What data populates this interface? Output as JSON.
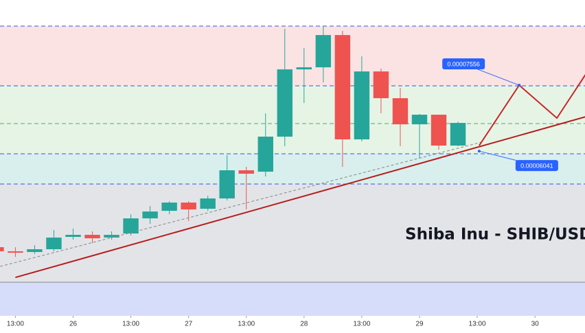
{
  "chart_data": {
    "type": "candlestick",
    "title": "Shiba Inu - SHIB/USD",
    "up_color": "#26a69a",
    "down_color": "#ef5350",
    "xlim": [
      0.2,
      30.6
    ],
    "ylim": [
      2.431e-05,
      9.469e-05
    ],
    "xticks": [
      {
        "value": 1,
        "label": "13:00"
      },
      {
        "value": 4,
        "label": "26"
      },
      {
        "value": 7,
        "label": "13:00"
      },
      {
        "value": 10,
        "label": "27"
      },
      {
        "value": 13,
        "label": "13:00"
      },
      {
        "value": 16,
        "label": "28"
      },
      {
        "value": 19,
        "label": "13:00"
      },
      {
        "value": 22,
        "label": "29"
      },
      {
        "value": 25,
        "label": "13:00"
      },
      {
        "value": 28,
        "label": "30"
      }
    ],
    "zones": [
      {
        "from": 8.887e-05,
        "to": 9.469e-05,
        "color": "#ffffff"
      },
      {
        "from": 7.556e-05,
        "to": 8.887e-05,
        "color": "#fbe3e3"
      },
      {
        "from": 6.041e-05,
        "to": 7.556e-05,
        "color": "#e6f4e6"
      },
      {
        "from": 5.368e-05,
        "to": 6.041e-05,
        "color": "#d8efee"
      },
      {
        "from": 3.18e-05,
        "to": 5.368e-05,
        "color": "#e3e4e8"
      },
      {
        "from": 2.431e-05,
        "to": 3.18e-05,
        "color": "#d5ddfb"
      }
    ],
    "levels": [
      {
        "value": 8.887e-05,
        "color": "#3355dd",
        "dash": true
      },
      {
        "value": 7.556e-05,
        "color": "#3355dd",
        "dash": true
      },
      {
        "value": 6.715e-05,
        "color": "#4caf50",
        "dash": true
      },
      {
        "value": 6.041e-05,
        "color": "#3355dd",
        "dash": true
      },
      {
        "value": 5.368e-05,
        "color": "#3355dd",
        "dash": true
      },
      {
        "value": 3.18e-05,
        "color": "#888888",
        "dash": false
      }
    ],
    "candles": [
      {
        "open": 3.961e-05,
        "high": 3.991e-05,
        "low": 3.838e-05,
        "close": 3.869e-05
      },
      {
        "open": 3.869e-05,
        "high": 3.961e-05,
        "low": 3.746e-05,
        "close": 3.838e-05
      },
      {
        "open": 3.853e-05,
        "high": 4.006e-05,
        "low": 3.807e-05,
        "close": 3.915e-05
      },
      {
        "open": 3.915e-05,
        "high": 4.343e-05,
        "low": 3.869e-05,
        "close": 4.175e-05
      },
      {
        "open": 4.19e-05,
        "high": 4.374e-05,
        "low": 4.129e-05,
        "close": 4.236e-05
      },
      {
        "open": 4.236e-05,
        "high": 4.312e-05,
        "low": 4.052e-05,
        "close": 4.159e-05
      },
      {
        "open": 4.175e-05,
        "high": 4.312e-05,
        "low": 4.129e-05,
        "close": 4.236e-05
      },
      {
        "open": 4.266e-05,
        "high": 4.695e-05,
        "low": 4.221e-05,
        "close": 4.603e-05
      },
      {
        "open": 4.603e-05,
        "high": 4.878e-05,
        "low": 4.481e-05,
        "close": 4.756e-05
      },
      {
        "open": 4.771e-05,
        "high": 4.986e-05,
        "low": 4.695e-05,
        "close": 4.955e-05
      },
      {
        "open": 4.955e-05,
        "high": 4.986e-05,
        "low": 4.542e-05,
        "close": 4.802e-05
      },
      {
        "open": 4.817e-05,
        "high": 5.108e-05,
        "low": 4.771e-05,
        "close": 5.047e-05
      },
      {
        "open": 5.047e-05,
        "high": 6.011e-05,
        "low": 5.001e-05,
        "close": 5.674e-05
      },
      {
        "open": 5.674e-05,
        "high": 5.751e-05,
        "low": 4.802e-05,
        "close": 5.598e-05
      },
      {
        "open": 5.643e-05,
        "high": 6.944e-05,
        "low": 5.536e-05,
        "close": 6.424e-05
      },
      {
        "open": 6.424e-05,
        "high": 8.826e-05,
        "low": 6.21e-05,
        "close": 7.923e-05
      },
      {
        "open": 7.923e-05,
        "high": 8.398e-05,
        "low": 7.173e-05,
        "close": 7.969e-05
      },
      {
        "open": 7.969e-05,
        "high": 8.887e-05,
        "low": 7.633e-05,
        "close": 8.688e-05
      },
      {
        "open": 8.688e-05,
        "high": 8.78e-05,
        "low": 5.751e-05,
        "close": 6.363e-05
      },
      {
        "open": 6.363e-05,
        "high": 8.214e-05,
        "low": 6.317e-05,
        "close": 7.877e-05
      },
      {
        "open": 7.877e-05,
        "high": 7.939e-05,
        "low": 6.944e-05,
        "close": 7.281e-05
      },
      {
        "open": 7.281e-05,
        "high": 7.51e-05,
        "low": 6.21e-05,
        "close": 6.699e-05
      },
      {
        "open": 6.699e-05,
        "high": 6.929e-05,
        "low": 5.934e-05,
        "close": 6.913e-05
      },
      {
        "open": 6.913e-05,
        "high": 6.913e-05,
        "low": 6.133e-05,
        "close": 6.225e-05
      },
      {
        "open": 6.225e-05,
        "high": 6.76e-05,
        "low": 6.21e-05,
        "close": 6.73e-05
      }
    ],
    "lines": [
      {
        "color": "#888888",
        "dash": true,
        "x": [
          0.21,
          25.21
        ],
        "y": [
          3.532e-05,
          6.301e-05
        ]
      },
      {
        "color": "#b71c1c",
        "dash": false,
        "x": [
          1.0,
          30.64
        ],
        "y": [
          3.287e-05,
          6.868e-05
        ]
      },
      {
        "color": "#c62828",
        "dash": false,
        "x": [
          25.1,
          27.18,
          29.14,
          30.64
        ],
        "y": [
          6.225e-05,
          7.571e-05,
          6.837e-05,
          7.816e-05
        ]
      }
    ],
    "price_labels": [
      {
        "label": 7.556e-05,
        "x": 27.18,
        "y": 7.571e-05,
        "side": "left"
      },
      {
        "label": 6.041e-05,
        "x": 25.1,
        "y": 6.102e-05,
        "side": "right"
      }
    ]
  }
}
